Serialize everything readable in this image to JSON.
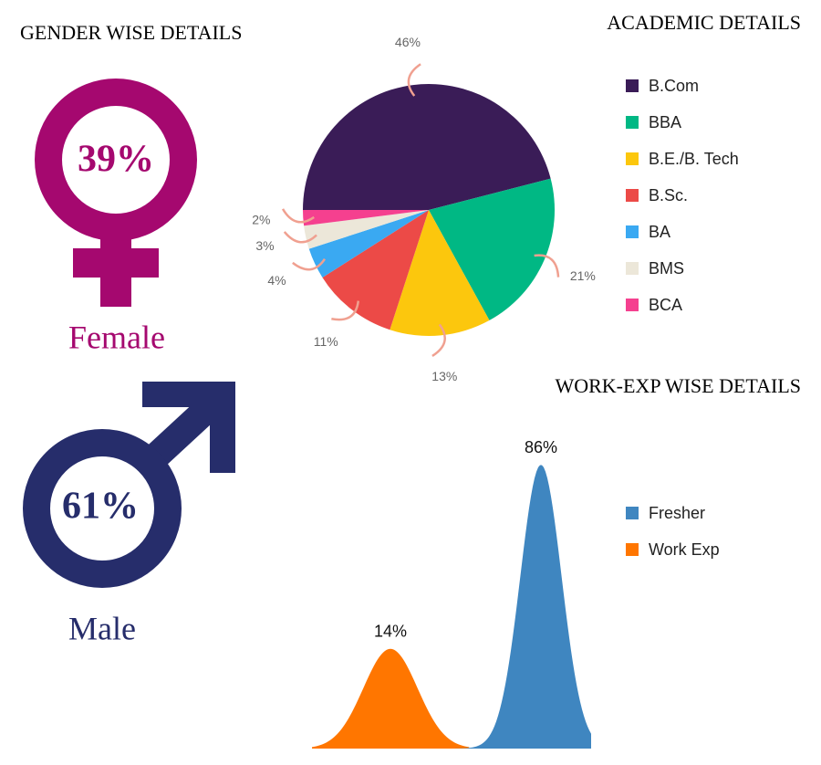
{
  "chart_data": [
    {
      "type": "gender",
      "title": "GENDER WISE DETAILS",
      "categories": [
        "Female",
        "Male"
      ],
      "values": [
        39,
        61
      ],
      "value_labels": [
        "39%",
        "61%"
      ],
      "colors": [
        "#a5086f",
        "#262d6b"
      ]
    },
    {
      "type": "pie",
      "title": "ACADEMIC DETAILS",
      "categories": [
        "B.Com",
        "BBA",
        "B.E./B. Tech",
        "B.Sc.",
        "BA",
        "BMS",
        "BCA"
      ],
      "values": [
        46,
        21,
        13,
        11,
        4,
        3,
        2
      ],
      "value_labels": [
        "46%",
        "21%",
        "13%",
        "11%",
        "4%",
        "3%",
        "2%"
      ],
      "colors": [
        "#3a1c57",
        "#00b884",
        "#fcc70d",
        "#ec4a47",
        "#3aa9f2",
        "#ece7d9",
        "#f5408f"
      ]
    },
    {
      "type": "area",
      "title": "WORK-EXP WISE DETAILS",
      "categories": [
        "Fresher",
        "Work Exp"
      ],
      "values": [
        86,
        14
      ],
      "value_labels": [
        "86%",
        "14%"
      ],
      "colors": [
        "#3f86c0",
        "#ff7600"
      ]
    }
  ]
}
